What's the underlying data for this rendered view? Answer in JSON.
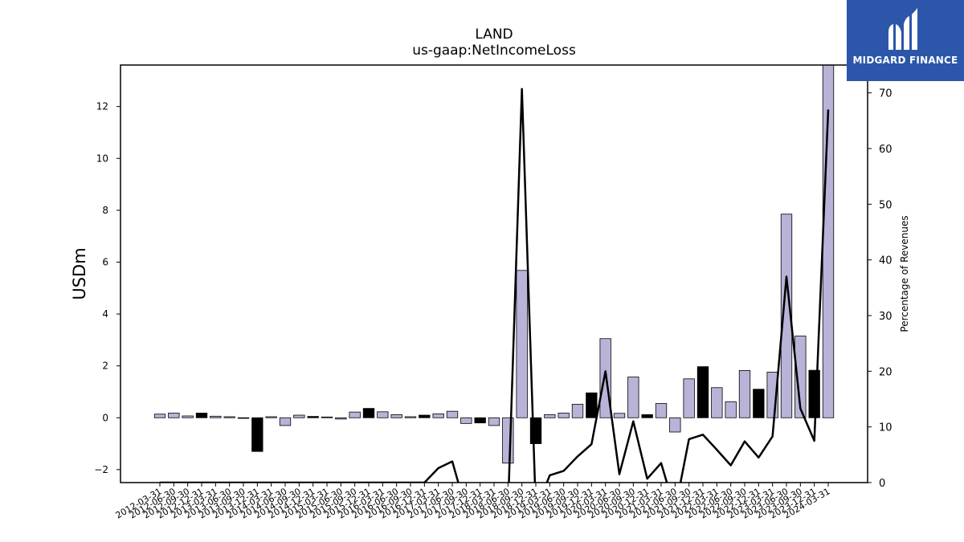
{
  "chart_data": {
    "type": "bar",
    "title": "LAND",
    "subtitle": "us-gaap:NetIncomeLoss",
    "ylabel": "USDm",
    "ylabel_right": "Percentage of Revenues",
    "ylim": [
      -2.5,
      13.6
    ],
    "ylim_right": [
      0,
      75
    ],
    "yticks": [
      -2,
      0,
      2,
      4,
      6,
      8,
      10,
      12
    ],
    "yticks_right": [
      0,
      10,
      20,
      30,
      40,
      50,
      60,
      70
    ],
    "grid": false,
    "bar_color_q": "#b8b4d8",
    "bar_color_fy": "#000000",
    "line_color": "#000000",
    "categories": [
      "2012-03-31",
      "2012-06-30",
      "2012-09-30",
      "2012-12-31",
      "2013-03-31",
      "2013-06-30",
      "2013-09-30",
      "2013-12-31",
      "2014-03-31",
      "2014-06-30",
      "2014-09-30",
      "2014-12-31",
      "2015-03-31",
      "2015-06-30",
      "2015-09-30",
      "2015-12-31",
      "2016-03-31",
      "2016-06-30",
      "2016-09-30",
      "2016-12-31",
      "2017-03-31",
      "2017-06-30",
      "2017-09-30",
      "2017-12-31",
      "2018-03-31",
      "2018-06-30",
      "2018-09-30",
      "2018-12-31",
      "2019-03-31",
      "2019-06-30",
      "2019-09-30",
      "2019-12-31",
      "2020-03-31",
      "2020-06-30",
      "2020-09-30",
      "2020-12-31",
      "2021-03-31",
      "2021-06-30",
      "2021-09-30",
      "2021-12-31",
      "2022-03-31",
      "2022-06-30",
      "2022-09-30",
      "2022-12-31",
      "2023-03-31",
      "2023-06-30",
      "2023-09-30",
      "2023-12-31",
      "2024-03-31"
    ],
    "series": [
      {
        "kind": "bar",
        "values": [
          0.14,
          0.18,
          0.07,
          0.18,
          0.06,
          0.04,
          -0.02,
          -1.3,
          0.04,
          -0.3,
          0.1,
          0.05,
          0.03,
          -0.05,
          0.22,
          0.36,
          0.23,
          0.12,
          0.04,
          0.1,
          0.15,
          0.25,
          -0.22,
          -0.2,
          -0.3,
          -1.75,
          5.68,
          -1.0,
          0.12,
          0.18,
          0.52,
          0.96,
          3.05,
          0.17,
          1.57,
          0.12,
          0.55,
          -0.55,
          1.5,
          1.97,
          1.16,
          0.62,
          1.82,
          1.1,
          1.76,
          7.85,
          3.15,
          1.83,
          13.6
        ],
        "fiscal_year_end": [
          false,
          false,
          false,
          true,
          false,
          false,
          false,
          true,
          false,
          false,
          false,
          true,
          false,
          false,
          false,
          true,
          false,
          false,
          false,
          true,
          false,
          false,
          false,
          true,
          false,
          false,
          false,
          true,
          false,
          false,
          false,
          true,
          false,
          false,
          false,
          true,
          false,
          false,
          false,
          true,
          false,
          false,
          false,
          true,
          false,
          false,
          false,
          true,
          false
        ]
      },
      {
        "kind": "line",
        "axis": "right",
        "values": [
          0,
          0,
          0,
          0,
          0,
          0,
          0,
          0,
          0,
          0,
          0,
          0,
          0,
          0,
          0,
          0,
          0,
          0,
          0,
          0,
          2.6,
          3.8,
          -5,
          -5,
          -5,
          -5,
          70.7,
          -5,
          1.3,
          2.1,
          4.7,
          6.9,
          20,
          1.5,
          11,
          0.7,
          3.5,
          -5,
          7.8,
          8.6,
          5.9,
          3.1,
          7.4,
          4.5,
          8.3,
          37,
          13.3,
          7.5,
          67
        ]
      }
    ]
  }
}
